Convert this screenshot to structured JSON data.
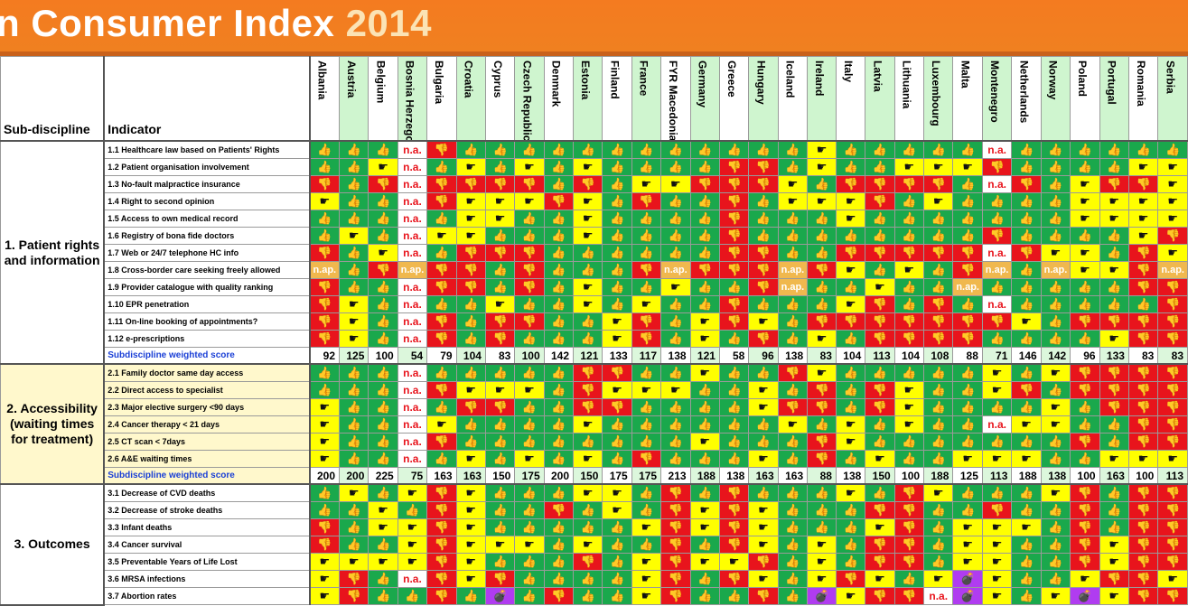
{
  "title": {
    "main": "n Consumer Index",
    "year": "2014"
  },
  "headers": {
    "sub": "Sub-discipline",
    "ind": "Indicator"
  },
  "countries": [
    "Albania",
    "Austria",
    "Belgium",
    "Bosnia Herzegovina",
    "Bulgaria",
    "Croatia",
    "Cyprus",
    "Czech Republic",
    "Denmark",
    "Estonia",
    "Finland",
    "France",
    "FYR Macedonia",
    "Germany",
    "Greece",
    "Hungary",
    "Iceland",
    "Ireland",
    "Italy",
    "Latvia",
    "Lithuania",
    "Luxembourg",
    "Malta",
    "Montenegro",
    "Netherlands",
    "Norway",
    "Poland",
    "Portugal",
    "Romania",
    "Serbia"
  ],
  "icons": {
    "g": "thumb-up-icon",
    "y": "pointing-hand-icon",
    "r": "thumb-down-icon",
    "p": "bomb-icon"
  },
  "colors": {
    "green": "#1aa84c",
    "yellow": "#ffff00",
    "red": "#e8141c",
    "orange": "#f47b20",
    "purple": "#b03cf0"
  },
  "sections": [
    {
      "label": "1. Patient rights and information",
      "cls": "s1",
      "rows": [
        {
          "label": "1.1 Healthcare law based on Patients' Rights",
          "cells": "g g g n r g g g g g g g g g g g g y g g g g g n g g g g g g"
        },
        {
          "label": "1.2 Patient organisation involvement",
          "cells": "g g y n g y g y g y g g g g r r g y g g y y y r g g g g y y"
        },
        {
          "label": "1.3 No-fault malpractice insurance",
          "cells": "r g r n r r r r g r g y y r r r y g r r r r g n r g y r r y"
        },
        {
          "label": "1.4 Right to second opinion",
          "cells": "y g g n r y y y r y g r g g r g y y y r g y g g g g y y y y"
        },
        {
          "label": "1.5 Access to own medical record",
          "cells": "g g g n g y y g g y g g g g r g g g y g g g g g g g y y y y"
        },
        {
          "label": "1.6 Registry of bona fide doctors",
          "cells": "g y g n y y g g g y g g g g r g g g g g g g g r g g g g y r"
        },
        {
          "label": "1.7 Web or 24/7 telephone HC info",
          "cells": "r g y n g r r r g g g g g g r r g g r r r r r n r y y g r y"
        },
        {
          "label": "1.8 Cross-border care seeking freely allowed",
          "cells": "nap g r nap r r g r g g g r nap r r r nap r y g y g r nap g nap y y r nap"
        },
        {
          "label": "1.9 Provider catalogue with quality ranking",
          "cells": "r g g n r r g r g y g g y g g r nap g g y g g nap g g g g g r r"
        },
        {
          "label": "1.10 EPR penetration",
          "cells": "r y g n g g y g g y g y g g r g g g y r g r g n g g g g g r"
        },
        {
          "label": "1.11 On-line booking of appointments?",
          "cells": "r y g n r g r r g g y r g y r y g r r r r r r r y g r r r r"
        },
        {
          "label": "1.12 e-prescriptions",
          "cells": "r y g n r g r g g g y r g y g r g y g r r r r g g g g y r r"
        }
      ],
      "scores": [
        "92",
        "125",
        "100",
        "54",
        "79",
        "104",
        "83",
        "100",
        "142",
        "121",
        "133",
        "117",
        "138",
        "121",
        "58",
        "96",
        "138",
        "83",
        "104",
        "113",
        "104",
        "108",
        "88",
        "71",
        "146",
        "142",
        "96",
        "133",
        "83",
        "83"
      ]
    },
    {
      "label": "2. Accessibility (waiting times for treatment)",
      "cls": "s2",
      "rows": [
        {
          "label": "2.1 Family doctor same day access",
          "cells": "g g g n g g g g g r r g g y g g r y g g g g g y g y r r r r"
        },
        {
          "label": "2.2 Direct access to specialist",
          "cells": "g g g n r y y y g r y y y g g y g r g r y g g y r g r r r r"
        },
        {
          "label": "2.3 Major elective surgery <90 days",
          "cells": "y g g n g r r g g r r g g g g y r r g r y g g g g y g r r r"
        },
        {
          "label": "2.4 Cancer therapy < 21 days",
          "cells": "y g g n y g g g g y g g g g g g y g y g y g g n y y g g r r"
        },
        {
          "label": "2.5 CT scan < 7days",
          "cells": "y g g n r g g g g g g g g y g g g r y g g g g g g g r g r r"
        },
        {
          "label": "2.6 A&E waiting times",
          "cells": "y g g n g y g y g y g r g g g y g r g y g g y y y g g y y y"
        }
      ],
      "scores": [
        "200",
        "200",
        "225",
        "75",
        "163",
        "163",
        "150",
        "175",
        "200",
        "150",
        "175",
        "175",
        "213",
        "188",
        "138",
        "163",
        "163",
        "88",
        "138",
        "150",
        "100",
        "188",
        "125",
        "113",
        "188",
        "138",
        "100",
        "163",
        "100",
        "113"
      ]
    },
    {
      "label": "3. Outcomes",
      "cls": "s3",
      "rows": [
        {
          "label": "3.1 Decrease of CVD deaths",
          "cells": "g y g y r y g g g y y g r g r g g g y g r y g g g y r g r r"
        },
        {
          "label": "3.2 Decrease of stroke deaths",
          "cells": "g g y g r y g g r g y g r y r y g g g r r g g r g g r g r r"
        },
        {
          "label": "3.3 Infant deaths",
          "cells": "r g y y r y g g g g g y r y r y g g g y r g y y y g r g r r"
        },
        {
          "label": "3.4 Cancer survival",
          "cells": "r g g y r y y y g y g g r g r y g y g r r g y y g g r y r r"
        },
        {
          "label": "3.5 Preventable Years of Life Lost",
          "cells": "y y y y r y g g g r g y r y y r g y g r r g y y g g r y r r"
        },
        {
          "label": "3.6 MRSA infections",
          "cells": "y r g n r y r g g g g y r g r y g y r y g y p y g g y r r y"
        },
        {
          "label": "3.7 Abortion rates",
          "cells": "y r g g r g p g r g g y r g g r g p y r r n p y g y p y r r"
        }
      ]
    }
  ],
  "score_label": "Subdiscipline weighted score",
  "na_label": "n.a.",
  "nap_label": "n.ap."
}
